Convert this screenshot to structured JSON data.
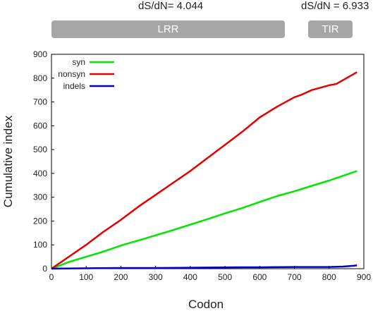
{
  "annotations": {
    "lrr_dsdn": "dS/dN= 4.044",
    "tir_dsdn": "dS/dN = 6.933"
  },
  "domains": [
    {
      "label": "LRR",
      "start": 0,
      "end": 676
    },
    {
      "label": "TIR",
      "start": 740,
      "end": 880
    }
  ],
  "colors": {
    "syn": "#00e600",
    "nonsyn": "#e60000",
    "indels": "#0000cc",
    "domain_bar": "#a6a6a6"
  },
  "chart_data": {
    "type": "line",
    "xlabel": "Codon",
    "ylabel": "Cumulative index",
    "xlim": [
      0,
      900
    ],
    "ylim": [
      0,
      900
    ],
    "xticks": [
      0,
      100,
      200,
      300,
      400,
      500,
      600,
      700,
      800,
      900
    ],
    "yticks": [
      0,
      100,
      200,
      300,
      400,
      500,
      600,
      700,
      800,
      900
    ],
    "grid": false,
    "legend_position": "top-left",
    "series": [
      {
        "name": "syn",
        "x": [
          0,
          50,
          100,
          150,
          200,
          250,
          300,
          350,
          400,
          450,
          500,
          550,
          600,
          650,
          700,
          750,
          800,
          850,
          880
        ],
        "y": [
          0,
          28,
          50,
          72,
          97,
          118,
          140,
          162,
          185,
          208,
          232,
          255,
          280,
          305,
          325,
          348,
          370,
          395,
          410
        ]
      },
      {
        "name": "nonsyn",
        "x": [
          0,
          50,
          100,
          150,
          200,
          250,
          300,
          350,
          400,
          450,
          500,
          550,
          600,
          650,
          700,
          720,
          750,
          800,
          820,
          850,
          880
        ],
        "y": [
          0,
          50,
          100,
          155,
          205,
          260,
          310,
          360,
          410,
          465,
          520,
          575,
          635,
          680,
          720,
          730,
          750,
          770,
          775,
          800,
          825
        ]
      },
      {
        "name": "indels",
        "x": [
          0,
          30,
          130,
          200,
          300,
          400,
          480,
          550,
          600,
          700,
          800,
          840,
          870,
          880
        ],
        "y": [
          0,
          1,
          2,
          3,
          3,
          4,
          5,
          6,
          6,
          7,
          7,
          9,
          12,
          14
        ]
      }
    ]
  }
}
